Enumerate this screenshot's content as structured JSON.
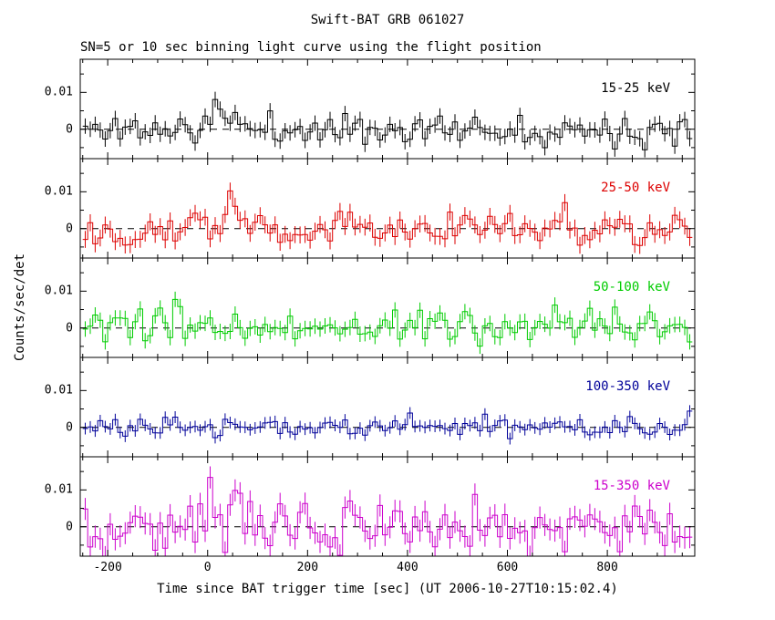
{
  "chart_data": {
    "type": "line",
    "style": "step-histogram-with-error-bars",
    "title": "Swift-BAT GRB 061027",
    "subtitle": "SN=5 or 10 sec binning light curve using the flight position",
    "xlabel": "Time since BAT trigger time [sec] (UT 2006-10-27T10:15:02.4)",
    "ylabel": "Counts/sec/det",
    "xlim": [
      -255,
      975
    ],
    "ylim": [
      -0.008,
      0.019
    ],
    "xticks": [
      -200,
      0,
      200,
      400,
      600,
      800
    ],
    "xtick_labels": [
      "-200",
      "0",
      "200",
      "400",
      "600",
      "800"
    ],
    "xtick_minor_step": 50,
    "yticks": [
      0,
      0.01
    ],
    "ytick_labels": [
      "0",
      "0.01"
    ],
    "ytick_minor": [
      -0.005,
      0.005,
      0.015
    ],
    "bin_width_sec": 10,
    "bin_start": -250,
    "bin_end": 970,
    "grid": false,
    "zero_line": "dashed",
    "panels": [
      {
        "label": "15-25 keV",
        "color": "#000000",
        "noise_sigma": 0.002,
        "error_bar": 0.0021,
        "seed": 11,
        "peaks": [
          {
            "t": 20,
            "amplitude": 0.0095,
            "width": 6
          },
          {
            "t": 55,
            "amplitude": 0.0045,
            "width": 9
          }
        ]
      },
      {
        "label": "25-50 keV",
        "color": "#dd0000",
        "noise_sigma": 0.0024,
        "error_bar": 0.0023,
        "seed": 22,
        "peaks": [
          {
            "t": 45,
            "amplitude": 0.0065,
            "width": 13
          },
          {
            "t": -30,
            "amplitude": 0.003,
            "width": 15
          }
        ]
      },
      {
        "label": "50-100 keV",
        "color": "#00cc00",
        "noise_sigma": 0.0023,
        "error_bar": 0.0021,
        "seed": 33,
        "peaks": [
          {
            "t": -65,
            "amplitude": 0.0035,
            "width": 7
          },
          {
            "t": 525,
            "amplitude": 0.004,
            "width": 5
          }
        ]
      },
      {
        "label": "100-350 keV",
        "color": "#000099",
        "noise_sigma": 0.0016,
        "error_bar": 0.0016,
        "seed": 44,
        "peaks": [
          {
            "t": -60,
            "amplitude": 0.003,
            "width": 4
          },
          {
            "t": 968,
            "amplitude": 0.006,
            "width": 4
          }
        ]
      },
      {
        "label": "15-350 keV",
        "color": "#cc00cc",
        "noise_sigma": 0.0036,
        "error_bar": 0.003,
        "seed": 55,
        "peaks": [
          {
            "t": 10,
            "amplitude": 0.011,
            "width": 7
          },
          {
            "t": 50,
            "amplitude": 0.009,
            "width": 10
          },
          {
            "t": 290,
            "amplitude": 0.008,
            "width": 4
          }
        ]
      }
    ]
  }
}
